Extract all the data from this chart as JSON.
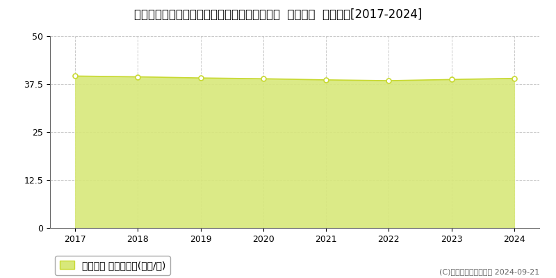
{
  "title": "神奈川県足柄上郡開成町みなみ３丁目３番１０  公示地価  地価推移[2017-2024]",
  "years": [
    2017,
    2018,
    2019,
    2020,
    2021,
    2022,
    2023,
    2024
  ],
  "values": [
    39.6,
    39.4,
    39.1,
    38.9,
    38.6,
    38.4,
    38.7,
    39.0
  ],
  "ylim": [
    0,
    50
  ],
  "yticks": [
    0,
    12.5,
    25,
    37.5,
    50
  ],
  "ytick_labels": [
    "0",
    "12.5",
    "25",
    "37.5",
    "50"
  ],
  "line_color": "#c8d932",
  "fill_color": "#d8e87a",
  "fill_alpha": 0.9,
  "marker_facecolor": "#ffffff",
  "marker_edgecolor": "#c8d932",
  "grid_color": "#bbbbbb",
  "bg_color": "#ffffff",
  "legend_label": "公示地価 平均坪単価(万円/坪)",
  "copyright_text": "(C)土地価格ドットコム 2024-09-21",
  "title_fontsize": 12,
  "tick_fontsize": 9,
  "legend_fontsize": 9,
  "copyright_fontsize": 8
}
